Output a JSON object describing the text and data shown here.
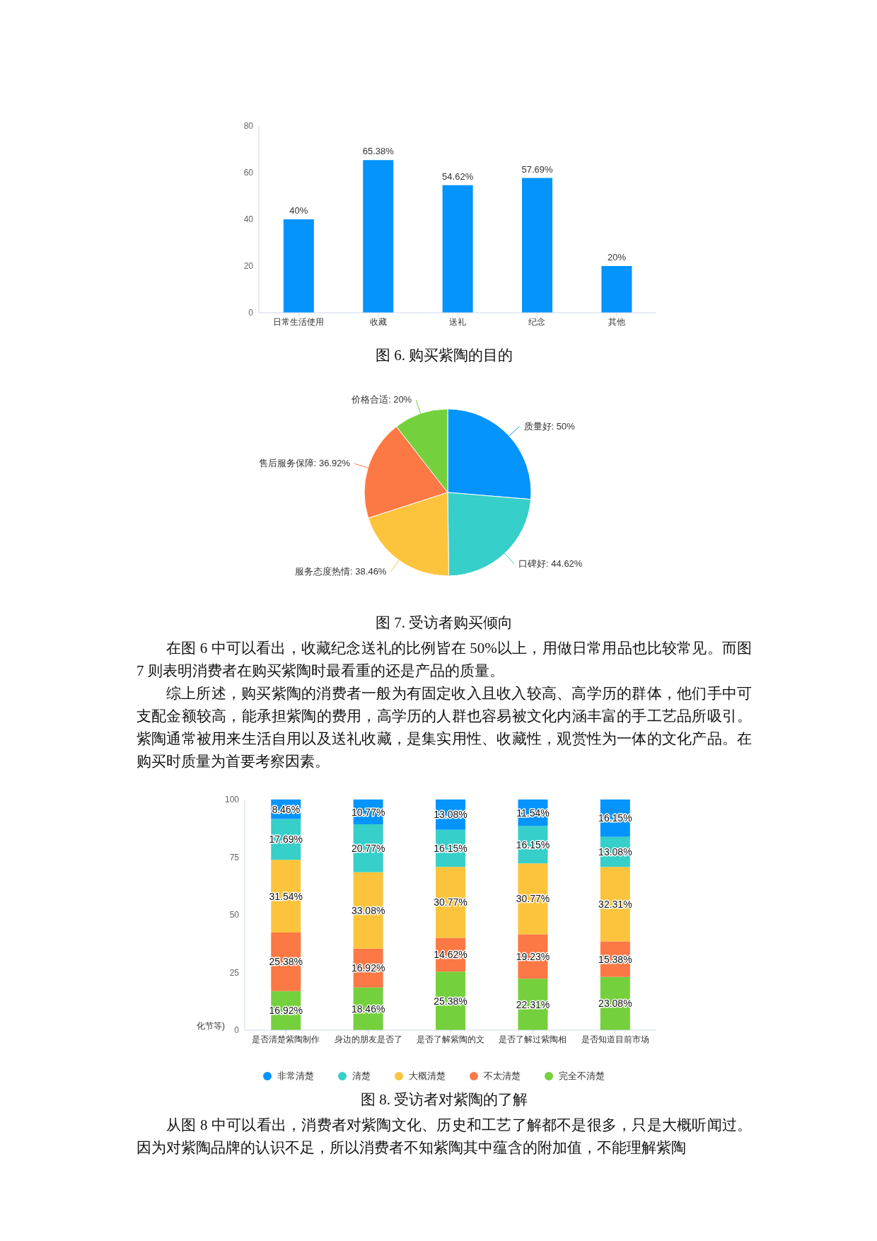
{
  "chart_data": [
    {
      "type": "bar",
      "title": "图 6. 购买紫陶的目的",
      "categories": [
        "日常生活使用",
        "收藏",
        "送礼",
        "纪念",
        "其他"
      ],
      "values": [
        40,
        65.38,
        54.62,
        57.69,
        20
      ],
      "value_labels": [
        "40%",
        "65.38%",
        "54.62%",
        "57.69%",
        "20%"
      ],
      "color": "#0494fc",
      "ylim": [
        0,
        80
      ],
      "yticks": [
        0,
        20,
        40,
        60,
        80
      ],
      "grid": false,
      "legend": false
    },
    {
      "type": "pie",
      "title": "图 7. 受访者购买倾向",
      "categories": [
        "质量好",
        "口碑好",
        "服务态度热情",
        "售后服务保障",
        "价格合适"
      ],
      "values": [
        50,
        44.62,
        38.46,
        36.92,
        20
      ],
      "value_labels": [
        "50%",
        "44.62%",
        "38.46%",
        "36.92%",
        "20%"
      ],
      "colors": [
        "#0494fc",
        "#36cfc9",
        "#fcc43c",
        "#fc7844",
        "#74d03c"
      ],
      "annotations": [
        "在图 6 中可以看出，收藏纪念送礼的比例皆在 50%以上，用做日常用品也比较常见。而图 7 则表明消费者在购买紫陶时最看重的还是产品的质量。",
        "综上所述，购买紫陶的消费者一般为有固定收入且收入较高、高学历的群体，他们手中可支配金额较高，能承担紫陶的费用，高学历的人群也容易被文化内涵丰富的手工艺品所吸引。紫陶通常被用来生活自用以及送礼收藏，是集实用性、收藏性，观赏性为一体的文化产品。在购买时质量为首要考察因素。"
      ]
    },
    {
      "type": "bar",
      "title": "图 8. 受访者对紫陶的了解",
      "stacked": true,
      "categories": [
        "是否清楚紫陶制作",
        "身边的朋友是否了",
        "是否了解紫陶的文",
        "是否了解过紫陶相",
        "是否知道目前市场"
      ],
      "ylim": [
        0,
        100
      ],
      "yticks": [
        0,
        25,
        50,
        75,
        100
      ],
      "grid": false,
      "legend": "bottom",
      "series": [
        {
          "name": "完全不清楚",
          "color": "#74d03c",
          "values": [
            16.92,
            18.46,
            25.38,
            22.31,
            23.08
          ],
          "value_labels": [
            "16.92%",
            "18.46%",
            "25.38%",
            "22.31%",
            "23.08%"
          ]
        },
        {
          "name": "不太清楚",
          "color": "#fc7844",
          "values": [
            25.38,
            16.92,
            14.62,
            19.23,
            15.38
          ],
          "value_labels": [
            "25.38%",
            "16.92%",
            "14.62%",
            "19.23%",
            "15.38%"
          ]
        },
        {
          "name": "大概清楚",
          "color": "#fcc43c",
          "values": [
            31.54,
            33.08,
            30.77,
            30.77,
            32.31
          ],
          "value_labels": [
            "31.54%",
            "33.08%",
            "30.77%",
            "30.77%",
            "32.31%"
          ]
        },
        {
          "name": "清楚",
          "color": "#36cfc9",
          "values": [
            17.69,
            20.77,
            16.15,
            16.15,
            13.08
          ],
          "value_labels": [
            "17.69%",
            "20.77%",
            "16.15%",
            "16.15%",
            "13.08%"
          ]
        },
        {
          "name": "非常清楚",
          "color": "#0494fc",
          "values": [
            8.46,
            10.77,
            13.08,
            11.54,
            16.15
          ],
          "value_labels": [
            "8.46%",
            "10.77%",
            "13.08%",
            "11.54%",
            "16.15%"
          ]
        }
      ],
      "annotations": [
        "化节等)",
        "从图 8 中可以看出，消费者对紫陶文化、历史和工艺了解都不是很多，只是大概听闻过。因为对紫陶品牌的认识不足，所以消费者不知紫陶其中蕴含的附加值，不能理解紫陶"
      ]
    }
  ]
}
